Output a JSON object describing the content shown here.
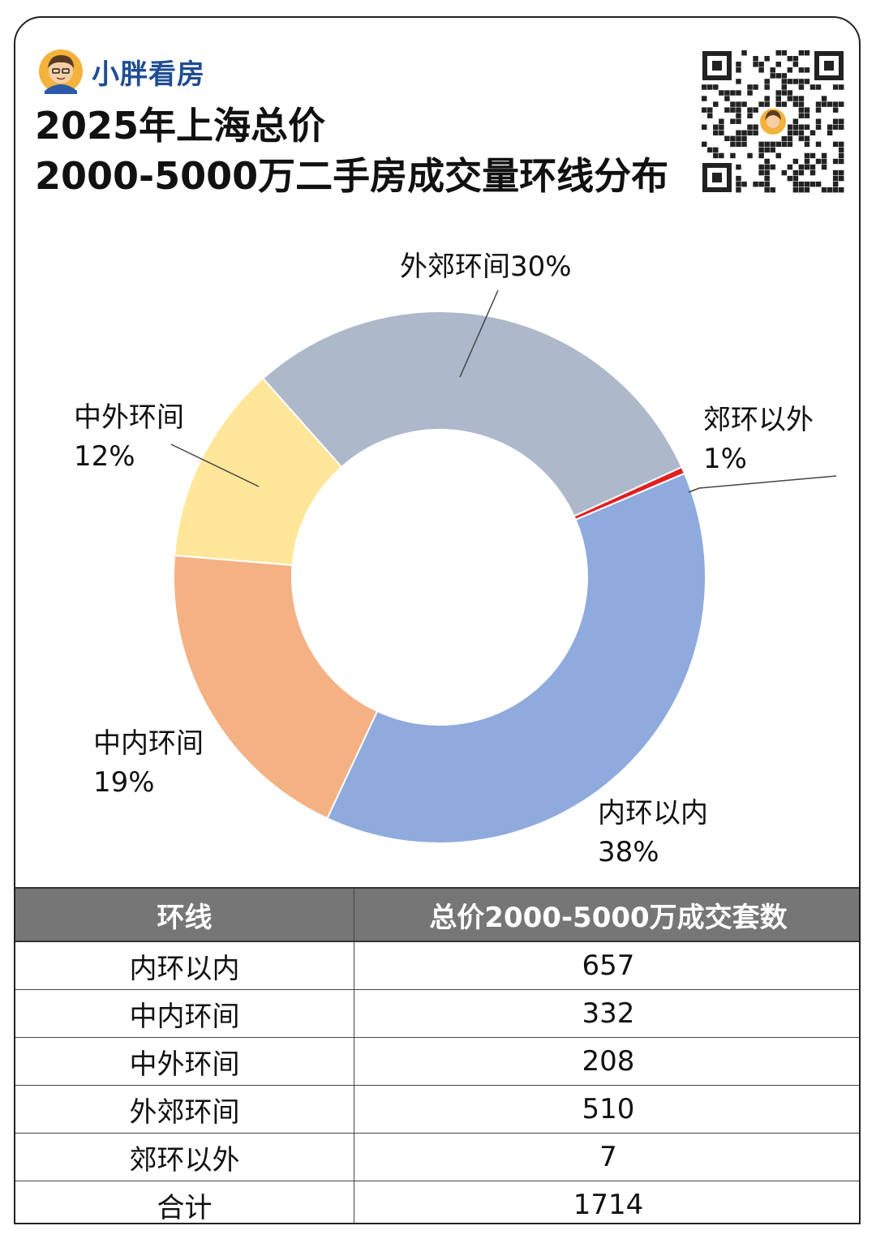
{
  "brand": {
    "name": "小胖看房",
    "avatar_icon": "cartoon-avatar-icon"
  },
  "title": {
    "line1": "2025年上海总价",
    "line2": "2000-5000万二手房成交量环线分布"
  },
  "qr_icon": "qr-code-icon",
  "chart_data": {
    "type": "pie",
    "subtype": "donut",
    "title": "2025年上海总价2000-5000万二手房成交量环线分布",
    "categories": [
      "内环以内",
      "中内环间",
      "中外环间",
      "外郊环间",
      "郊环以外"
    ],
    "values": [
      657,
      332,
      208,
      510,
      7
    ],
    "percent_labels": [
      "38%",
      "19%",
      "12%",
      "30%",
      "1%"
    ],
    "colors": [
      "#8faadc",
      "#f4b183",
      "#ffe699",
      "#adb9ca",
      "#e02020"
    ],
    "total": 1714
  },
  "table": {
    "headers": [
      "环线",
      "总价2000-5000万成交套数"
    ],
    "rows": [
      [
        "内环以内",
        "657"
      ],
      [
        "中内环间",
        "332"
      ],
      [
        "中外环间",
        "208"
      ],
      [
        "外郊环间",
        "510"
      ],
      [
        "郊环以外",
        "7"
      ],
      [
        "合计",
        "1714"
      ]
    ]
  }
}
